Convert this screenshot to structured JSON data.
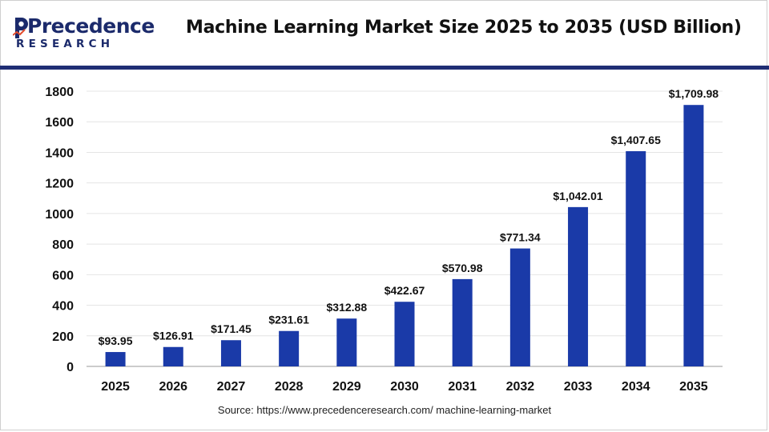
{
  "brand": {
    "name": "Precedence",
    "sub": "RESEARCH"
  },
  "colors": {
    "bar": "#1a3aa8",
    "brand": "#1b2a6b",
    "accent": "#1f2e74",
    "grid": "#e4e4e4"
  },
  "chart_data": {
    "type": "bar",
    "title": "Machine Learning Market Size 2025 to 2035 (USD Billion)",
    "xlabel": "",
    "ylabel": "",
    "categories": [
      "2025",
      "2026",
      "2027",
      "2028",
      "2029",
      "2030",
      "2031",
      "2032",
      "2033",
      "2034",
      "2035"
    ],
    "values": [
      93.95,
      126.91,
      171.45,
      231.61,
      312.88,
      422.67,
      570.98,
      771.34,
      1042.01,
      1407.65,
      1709.98
    ],
    "data_labels": [
      "$93.95",
      "$126.91",
      "$171.45",
      "$231.61",
      "$312.88",
      "$422.67",
      "$570.98",
      "$771.34",
      "$1,042.01",
      "$1,407.65",
      "$1,709.98"
    ],
    "ylim": [
      0,
      1800
    ],
    "yticks": [
      "0",
      "200",
      "400",
      "600",
      "800",
      "1000",
      "1200",
      "1400",
      "1600",
      "1800"
    ],
    "grid": true,
    "legend": "none"
  },
  "source": "Source: https://www.precedenceresearch.com/ machine-learning-market"
}
